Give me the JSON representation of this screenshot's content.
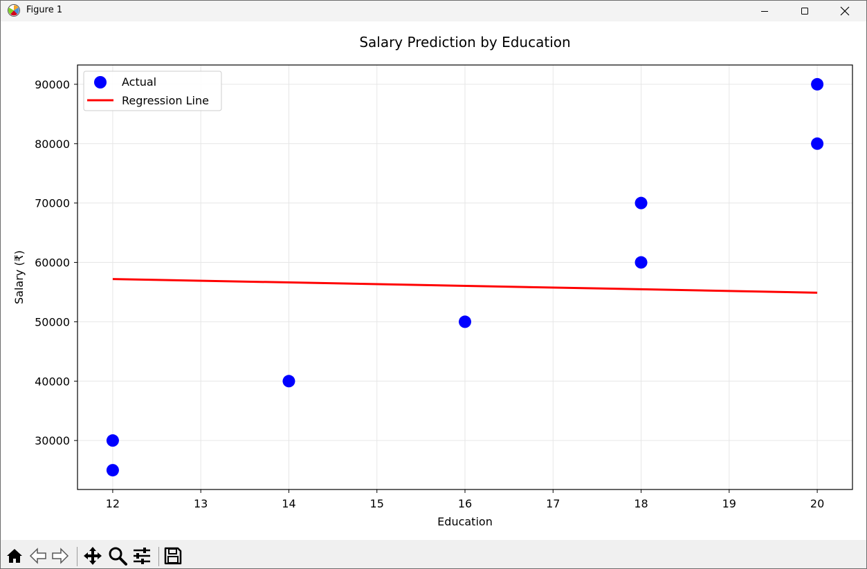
{
  "window": {
    "title": "Figure 1",
    "controls": {
      "minimize": "minimize-icon",
      "maximize": "maximize-icon",
      "close": "close-icon"
    }
  },
  "toolbar": {
    "icons": [
      "home-icon",
      "back-icon",
      "forward-icon",
      "pan-icon",
      "zoom-icon",
      "configure-subplots-icon",
      "save-icon"
    ]
  },
  "colors": {
    "points": "#0000ff",
    "line": "#ff0000",
    "grid": "#e6e6e6"
  },
  "chart_data": {
    "type": "scatter",
    "title": "Salary Prediction by Education",
    "xlabel": "Education",
    "ylabel": "Salary (₹)",
    "xlim": [
      11.6,
      20.4
    ],
    "ylim": [
      21750,
      93250
    ],
    "xticks": [
      12,
      13,
      14,
      15,
      16,
      17,
      18,
      19,
      20
    ],
    "yticks": [
      30000,
      40000,
      50000,
      60000,
      70000,
      80000,
      90000
    ],
    "grid": true,
    "legend": {
      "placement": "upper-left",
      "entries": [
        "Actual",
        "Regression Line"
      ]
    },
    "series": [
      {
        "name": "Actual",
        "kind": "scatter",
        "color": "#0000ff",
        "x": [
          12,
          12,
          14,
          16,
          18,
          18,
          20,
          20
        ],
        "y": [
          25000,
          30000,
          40000,
          50000,
          60000,
          70000,
          80000,
          90000
        ]
      },
      {
        "name": "Regression Line",
        "kind": "line",
        "color": "#ff0000",
        "x": [
          12,
          20
        ],
        "y": [
          57200,
          54900
        ]
      }
    ]
  }
}
